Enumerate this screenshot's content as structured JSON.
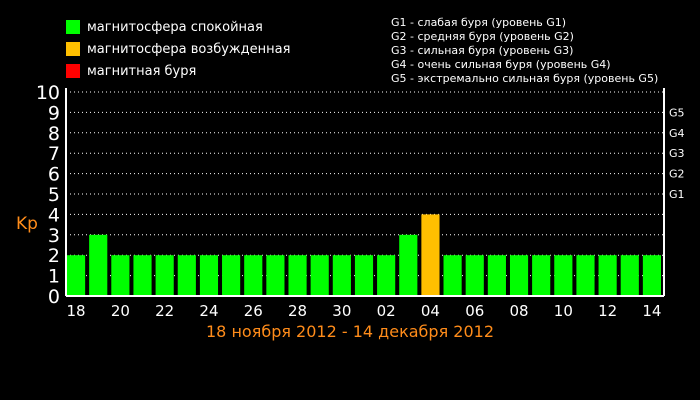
{
  "legend": {
    "items": [
      {
        "label": "магнитосфера спокойная",
        "color": "#00ff00"
      },
      {
        "label": "магнитосфера возбужденная",
        "color": "#ffbf00"
      },
      {
        "label": "магнитная буря",
        "color": "#ff0000"
      }
    ]
  },
  "storm_legend": [
    "G1 - слабая буря (уровень G1)",
    "G2 - средняя буря (уровень G2)",
    "G3 - сильная буря (уровень G3)",
    "G4 - очень сильная буря (уровень G4)",
    "G5 - экстремально сильная буря (уровень G5)"
  ],
  "chart_data": {
    "type": "bar",
    "ylabel": "Kp",
    "xlabel": "18 ноября 2012 - 14 декабря 2012",
    "ylim": [
      0,
      10
    ],
    "y_ticks": [
      "0",
      "1",
      "2",
      "3",
      "4",
      "5",
      "6",
      "7",
      "8",
      "9",
      "10"
    ],
    "right_ticks": [
      {
        "label": "G1",
        "value": 5
      },
      {
        "label": "G2",
        "value": 6
      },
      {
        "label": "G3",
        "value": 7
      },
      {
        "label": "G4",
        "value": 8
      },
      {
        "label": "G5",
        "value": 9
      }
    ],
    "grid": true,
    "x_tick_labels": [
      "18",
      "20",
      "22",
      "24",
      "26",
      "28",
      "30",
      "02",
      "04",
      "06",
      "08",
      "10",
      "12",
      "14"
    ],
    "categories": [
      "18",
      "19",
      "20",
      "21",
      "22",
      "23",
      "24",
      "25",
      "26",
      "27",
      "28",
      "29",
      "30",
      "01",
      "02",
      "03",
      "04",
      "05",
      "06",
      "07",
      "08",
      "09",
      "10",
      "11",
      "12",
      "13",
      "14"
    ],
    "values": [
      2,
      3,
      2,
      2,
      2,
      2,
      2,
      2,
      2,
      2,
      2,
      2,
      2,
      2,
      2,
      3,
      4,
      2,
      2,
      2,
      2,
      2,
      2,
      2,
      2,
      2,
      2
    ],
    "colors": {
      "quiet": "#00ff00",
      "active": "#ffbf00",
      "storm": "#ff0000"
    }
  }
}
